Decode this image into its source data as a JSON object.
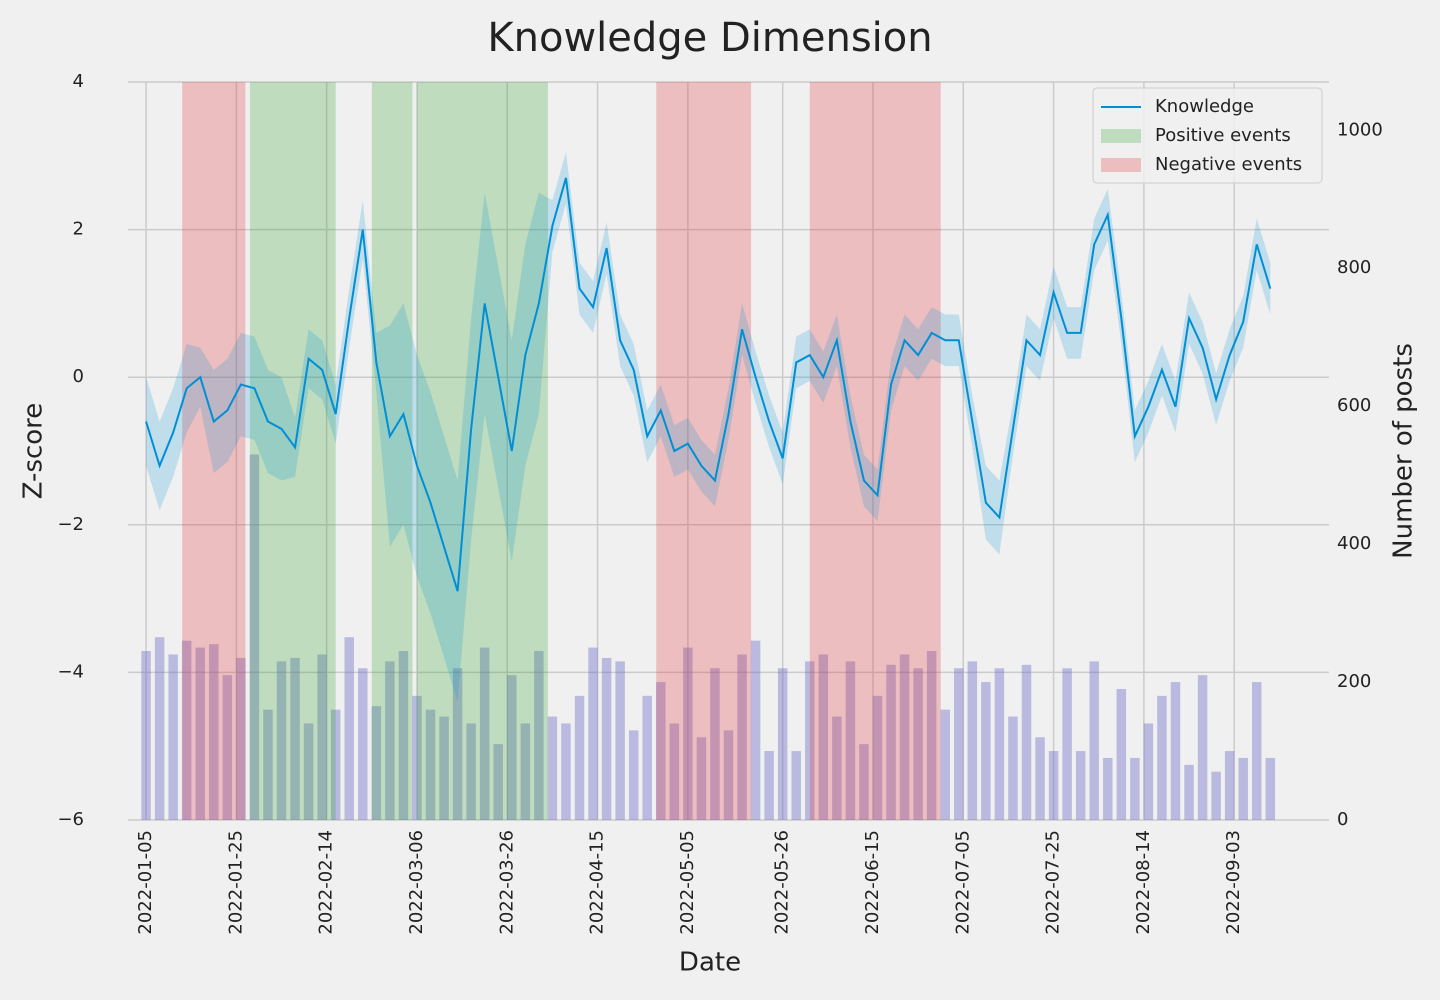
{
  "chart_data": {
    "type": "line",
    "title": "Knowledge Dimension",
    "x_label": "Date",
    "y_label": "Z-score",
    "y2_label": "Number of posts",
    "x": [
      "2022-01-05",
      "2022-01-08",
      "2022-01-11",
      "2022-01-14",
      "2022-01-17",
      "2022-01-20",
      "2022-01-23",
      "2022-01-26",
      "2022-01-29",
      "2022-02-01",
      "2022-02-04",
      "2022-02-07",
      "2022-02-10",
      "2022-02-13",
      "2022-02-16",
      "2022-02-19",
      "2022-02-22",
      "2022-02-25",
      "2022-02-28",
      "2022-03-03",
      "2022-03-06",
      "2022-03-09",
      "2022-03-12",
      "2022-03-15",
      "2022-03-18",
      "2022-03-21",
      "2022-03-24",
      "2022-03-27",
      "2022-03-30",
      "2022-04-02",
      "2022-04-05",
      "2022-04-08",
      "2022-04-11",
      "2022-04-14",
      "2022-04-17",
      "2022-04-20",
      "2022-04-23",
      "2022-04-26",
      "2022-04-29",
      "2022-05-02",
      "2022-05-05",
      "2022-05-08",
      "2022-05-11",
      "2022-05-14",
      "2022-05-17",
      "2022-05-20",
      "2022-05-23",
      "2022-05-26",
      "2022-05-29",
      "2022-06-01",
      "2022-06-04",
      "2022-06-07",
      "2022-06-10",
      "2022-06-13",
      "2022-06-16",
      "2022-06-19",
      "2022-06-22",
      "2022-06-25",
      "2022-06-28",
      "2022-07-01",
      "2022-07-04",
      "2022-07-07",
      "2022-07-10",
      "2022-07-13",
      "2022-07-16",
      "2022-07-19",
      "2022-07-22",
      "2022-07-25",
      "2022-07-28",
      "2022-07-31",
      "2022-08-03",
      "2022-08-06",
      "2022-08-09",
      "2022-08-12",
      "2022-08-15",
      "2022-08-18",
      "2022-08-21",
      "2022-08-24",
      "2022-08-27",
      "2022-08-30",
      "2022-09-02",
      "2022-09-05",
      "2022-09-08",
      "2022-09-11"
    ],
    "series": [
      {
        "name": "Knowledge",
        "color": "#008fd5",
        "values": [
          -0.6,
          -1.2,
          -0.75,
          -0.15,
          0.0,
          -0.6,
          -0.45,
          -0.1,
          -0.15,
          -0.6,
          -0.7,
          -0.95,
          0.25,
          0.1,
          -0.5,
          0.8,
          2.0,
          0.2,
          -0.8,
          -0.5,
          -1.2,
          -1.7,
          -2.3,
          -2.9,
          -0.7,
          1.0,
          0.0,
          -1.0,
          0.3,
          1.0,
          2.05,
          2.7,
          1.2,
          0.95,
          1.75,
          0.5,
          0.1,
          -0.8,
          -0.45,
          -1.0,
          -0.9,
          -1.2,
          -1.4,
          -0.5,
          0.65,
          0.0,
          -0.6,
          -1.1,
          0.2,
          0.3,
          0.0,
          0.5,
          -0.6,
          -1.4,
          -1.6,
          -0.1,
          0.5,
          0.3,
          0.6,
          0.5,
          0.5,
          -0.6,
          -1.7,
          -1.9,
          -0.7,
          0.5,
          0.3,
          1.15,
          0.6,
          0.6,
          1.8,
          2.2,
          0.8,
          -0.8,
          -0.4,
          0.1,
          -0.4,
          0.8,
          0.4,
          -0.3,
          0.3,
          0.75,
          1.8,
          1.2
        ],
        "lower": [
          -1.2,
          -1.8,
          -1.35,
          -0.75,
          -0.4,
          -1.3,
          -1.15,
          -0.8,
          -0.85,
          -1.3,
          -1.4,
          -1.35,
          -0.15,
          -0.3,
          -0.9,
          0.4,
          1.6,
          -0.2,
          -2.3,
          -2.0,
          -2.7,
          -3.2,
          -3.8,
          -4.4,
          -2.2,
          -0.5,
          -1.5,
          -2.5,
          -1.2,
          -0.5,
          1.7,
          2.35,
          0.85,
          0.6,
          1.4,
          0.15,
          -0.25,
          -1.15,
          -0.8,
          -1.35,
          -1.25,
          -1.55,
          -1.75,
          -0.85,
          0.3,
          -0.35,
          -0.95,
          -1.45,
          -0.15,
          -0.05,
          -0.35,
          0.15,
          -0.95,
          -1.75,
          -1.95,
          -0.45,
          0.15,
          -0.05,
          0.25,
          0.15,
          0.15,
          -0.95,
          -2.2,
          -2.4,
          -1.05,
          0.15,
          -0.05,
          0.8,
          0.25,
          0.25,
          1.45,
          1.85,
          0.45,
          -1.15,
          -0.75,
          -0.25,
          -0.75,
          0.45,
          0.05,
          -0.65,
          -0.05,
          0.4,
          1.45,
          0.85
        ],
        "upper": [
          0.0,
          -0.6,
          -0.15,
          0.45,
          0.4,
          0.1,
          0.25,
          0.6,
          0.55,
          0.1,
          0.0,
          -0.55,
          0.65,
          0.5,
          -0.1,
          1.2,
          2.4,
          0.6,
          0.7,
          1.0,
          0.3,
          -0.2,
          -0.8,
          -1.4,
          0.8,
          2.5,
          1.5,
          0.5,
          1.8,
          2.5,
          2.4,
          3.05,
          1.55,
          1.3,
          2.1,
          0.85,
          0.45,
          -0.45,
          -0.1,
          -0.65,
          -0.55,
          -0.85,
          -1.05,
          -0.15,
          1.0,
          0.35,
          -0.25,
          -0.75,
          0.55,
          0.65,
          0.35,
          0.85,
          -0.25,
          -1.05,
          -1.25,
          0.25,
          0.85,
          0.65,
          0.95,
          0.85,
          0.85,
          -0.25,
          -1.2,
          -1.4,
          -0.35,
          0.85,
          0.65,
          1.5,
          0.95,
          0.95,
          2.15,
          2.55,
          1.15,
          -0.45,
          -0.05,
          0.45,
          -0.05,
          1.15,
          0.75,
          0.05,
          0.65,
          1.1,
          2.15,
          1.55
        ]
      }
    ],
    "bars": {
      "axis": "y2",
      "color": "#6a6ac8",
      "values": [
        245,
        265,
        240,
        260,
        250,
        255,
        210,
        235,
        530,
        160,
        230,
        235,
        140,
        240,
        160,
        265,
        220,
        165,
        230,
        245,
        180,
        160,
        150,
        220,
        140,
        250,
        110,
        210,
        140,
        245,
        150,
        140,
        180,
        250,
        235,
        230,
        130,
        180,
        200,
        140,
        250,
        120,
        220,
        130,
        240,
        260,
        100,
        220,
        100,
        230,
        240,
        150,
        230,
        110,
        180,
        225,
        240,
        220,
        245,
        160,
        220,
        230,
        200,
        220,
        150,
        225,
        120,
        100,
        220,
        100,
        230,
        90,
        190,
        90,
        140,
        180,
        200,
        80,
        210,
        70,
        100,
        90,
        200,
        90
      ]
    },
    "events": [
      {
        "name": "Positive events",
        "color": "#2ca02c",
        "spans": [
          [
            "2022-01-28",
            "2022-02-16"
          ],
          [
            "2022-02-24",
            "2022-03-05"
          ],
          [
            "2022-03-06",
            "2022-04-04"
          ]
        ]
      },
      {
        "name": "Negative events",
        "color": "#e3262b",
        "spans": [
          [
            "2022-01-13",
            "2022-01-27"
          ],
          [
            "2022-04-28",
            "2022-05-19"
          ],
          [
            "2022-06-01",
            "2022-06-30"
          ]
        ]
      }
    ],
    "xlim": [
      "2022-01-01",
      "2022-09-24"
    ],
    "xticks": [
      "2022-01-05",
      "2022-01-25",
      "2022-02-14",
      "2022-03-06",
      "2022-03-26",
      "2022-04-15",
      "2022-05-05",
      "2022-05-26",
      "2022-06-15",
      "2022-07-05",
      "2022-07-25",
      "2022-08-14",
      "2022-09-03"
    ],
    "ylim": [
      -6,
      4
    ],
    "yticks": [
      {
        "value": -6,
        "label": "−6"
      },
      {
        "value": -4,
        "label": "−4"
      },
      {
        "value": -2,
        "label": "−2"
      },
      0,
      2,
      4
    ],
    "y2lim": [
      0,
      1070
    ],
    "y2ticks": [
      0,
      200,
      400,
      600,
      800,
      1000
    ],
    "grid": true,
    "legend": "upper right"
  }
}
